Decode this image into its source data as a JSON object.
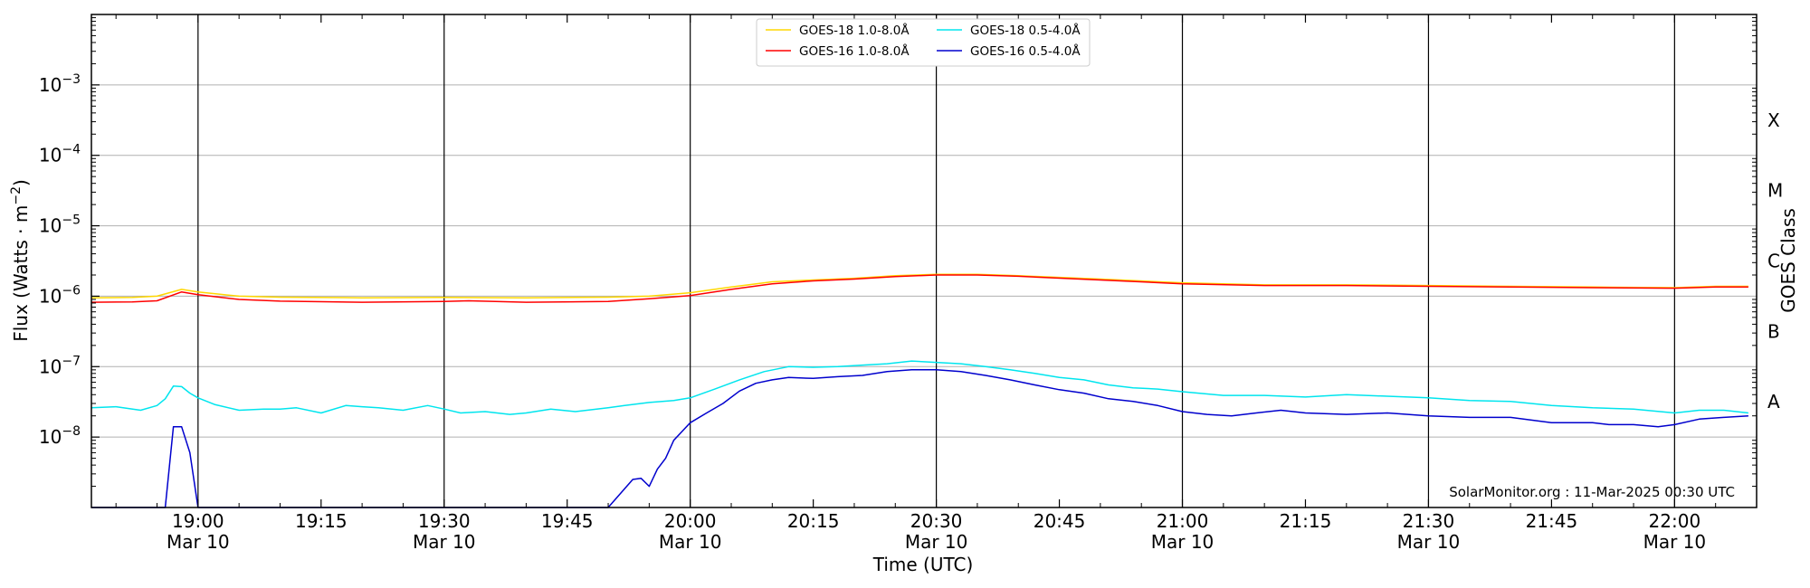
{
  "chart_data": {
    "type": "line",
    "title": "",
    "xlabel": "Time (UTC)",
    "ylabel": "Flux (Watts · m",
    "ylabel_sup": "−2",
    "ylabel_close": ")",
    "y2label": "GOES Class",
    "yscale": "log",
    "xlim": [
      "2025-03-10 18:47",
      "2025-03-10 22:10"
    ],
    "ylim": [
      1e-09,
      0.01
    ],
    "grid": "horizontal at decades, vertical at half hours",
    "legend_position": "top-center",
    "credit": "SolarMonitor.org : 11-Mar-2025 00:30 UTC",
    "x_ticks": [
      {
        "time": "19:00",
        "label": "19:00",
        "date": "Mar 10"
      },
      {
        "time": "19:15",
        "label": "19:15",
        "date": ""
      },
      {
        "time": "19:30",
        "label": "19:30",
        "date": "Mar 10"
      },
      {
        "time": "19:45",
        "label": "19:45",
        "date": ""
      },
      {
        "time": "20:00",
        "label": "20:00",
        "date": "Mar 10"
      },
      {
        "time": "20:15",
        "label": "20:15",
        "date": ""
      },
      {
        "time": "20:30",
        "label": "20:30",
        "date": "Mar 10"
      },
      {
        "time": "20:45",
        "label": "20:45",
        "date": ""
      },
      {
        "time": "21:00",
        "label": "21:00",
        "date": "Mar 10"
      },
      {
        "time": "21:15",
        "label": "21:15",
        "date": ""
      },
      {
        "time": "21:30",
        "label": "21:30",
        "date": "Mar 10"
      },
      {
        "time": "21:45",
        "label": "21:45",
        "date": ""
      },
      {
        "time": "22:00",
        "label": "22:00",
        "date": "Mar 10"
      }
    ],
    "y_ticks": [
      {
        "value": 1e-08,
        "base": "10",
        "exp": "−8"
      },
      {
        "value": 1e-07,
        "base": "10",
        "exp": "−7"
      },
      {
        "value": 1e-06,
        "base": "10",
        "exp": "−6"
      },
      {
        "value": 1e-05,
        "base": "10",
        "exp": "−5"
      },
      {
        "value": 0.0001,
        "base": "10",
        "exp": "−4"
      },
      {
        "value": 0.001,
        "base": "10",
        "exp": "−3"
      }
    ],
    "goes_classes": [
      {
        "label": "A",
        "value": 3.16e-08
      },
      {
        "label": "B",
        "value": 3.16e-07
      },
      {
        "label": "C",
        "value": 3.16e-06
      },
      {
        "label": "M",
        "value": 3.16e-05
      },
      {
        "label": "X",
        "value": 0.000316
      }
    ],
    "series": [
      {
        "name": "GOES-18 1.0-8.0Å",
        "color": "#ffd700",
        "x": [
          "18:47",
          "18:52",
          "18:55",
          "18:58",
          "19:00",
          "19:05",
          "19:10",
          "19:20",
          "19:30",
          "19:40",
          "19:50",
          "19:55",
          "20:00",
          "20:05",
          "20:10",
          "20:15",
          "20:20",
          "20:25",
          "20:30",
          "20:35",
          "20:40",
          "20:50",
          "21:00",
          "21:10",
          "21:20",
          "21:30",
          "21:40",
          "21:50",
          "22:00",
          "22:05",
          "22:09"
        ],
        "y": [
          9.5e-07,
          9.6e-07,
          1e-06,
          1.25e-06,
          1.15e-06,
          1e-06,
          9.7e-07,
          9.5e-07,
          9.6e-07,
          9.5e-07,
          9.7e-07,
          1e-06,
          1.12e-06,
          1.35e-06,
          1.6e-06,
          1.7e-06,
          1.8e-06,
          1.95e-06,
          2.05e-06,
          2.05e-06,
          1.95e-06,
          1.75e-06,
          1.55e-06,
          1.45e-06,
          1.45e-06,
          1.42e-06,
          1.38e-06,
          1.35e-06,
          1.32e-06,
          1.38e-06,
          1.38e-06
        ]
      },
      {
        "name": "GOES-16 1.0-8.0Å",
        "color": "#ff0000",
        "x": [
          "18:47",
          "18:52",
          "18:55",
          "18:58",
          "19:00",
          "19:05",
          "19:10",
          "19:20",
          "19:30",
          "19:33",
          "19:40",
          "19:50",
          "19:55",
          "20:00",
          "20:05",
          "20:10",
          "20:15",
          "20:20",
          "20:25",
          "20:30",
          "20:35",
          "20:40",
          "20:50",
          "21:00",
          "21:10",
          "21:20",
          "21:30",
          "21:40",
          "21:50",
          "22:00",
          "22:05",
          "22:09"
        ],
        "y": [
          8.2e-07,
          8.3e-07,
          8.6e-07,
          1.15e-06,
          1.05e-06,
          9e-07,
          8.5e-07,
          8.2e-07,
          8.4e-07,
          8.6e-07,
          8.2e-07,
          8.4e-07,
          9.2e-07,
          1.02e-06,
          1.25e-06,
          1.5e-06,
          1.65e-06,
          1.75e-06,
          1.9e-06,
          2e-06,
          2e-06,
          1.92e-06,
          1.7e-06,
          1.5e-06,
          1.42e-06,
          1.42e-06,
          1.38e-06,
          1.35e-06,
          1.32e-06,
          1.3e-06,
          1.35e-06,
          1.35e-06
        ]
      },
      {
        "name": "GOES-18 0.5-4.0Å",
        "color": "#00e5ee",
        "x": [
          "18:47",
          "18:50",
          "18:53",
          "18:55",
          "18:56",
          "18:57",
          "18:58",
          "18:59",
          "19:00",
          "19:02",
          "19:05",
          "19:08",
          "19:10",
          "19:12",
          "19:15",
          "19:18",
          "19:20",
          "19:22",
          "19:25",
          "19:28",
          "19:30",
          "19:32",
          "19:35",
          "19:38",
          "19:40",
          "19:43",
          "19:46",
          "19:50",
          "19:52",
          "19:55",
          "19:58",
          "20:00",
          "20:03",
          "20:06",
          "20:09",
          "20:12",
          "20:15",
          "20:18",
          "20:21",
          "20:24",
          "20:27",
          "20:30",
          "20:33",
          "20:36",
          "20:39",
          "20:42",
          "20:45",
          "20:48",
          "20:51",
          "20:54",
          "20:57",
          "21:00",
          "21:05",
          "21:10",
          "21:15",
          "21:20",
          "21:25",
          "21:30",
          "21:35",
          "21:40",
          "21:45",
          "21:50",
          "21:55",
          "22:00",
          "22:03",
          "22:06",
          "22:09"
        ],
        "y": [
          2.6e-08,
          2.7e-08,
          2.4e-08,
          2.8e-08,
          3.5e-08,
          5.3e-08,
          5.2e-08,
          4.2e-08,
          3.6e-08,
          2.9e-08,
          2.4e-08,
          2.5e-08,
          2.5e-08,
          2.6e-08,
          2.2e-08,
          2.8e-08,
          2.7e-08,
          2.6e-08,
          2.4e-08,
          2.8e-08,
          2.5e-08,
          2.2e-08,
          2.3e-08,
          2.1e-08,
          2.2e-08,
          2.5e-08,
          2.3e-08,
          2.6e-08,
          2.8e-08,
          3.1e-08,
          3.3e-08,
          3.6e-08,
          4.8e-08,
          6.5e-08,
          8.5e-08,
          1e-07,
          9.8e-08,
          1e-07,
          1.05e-07,
          1.1e-07,
          1.2e-07,
          1.15e-07,
          1.1e-07,
          1e-07,
          9e-08,
          8e-08,
          7e-08,
          6.5e-08,
          5.5e-08,
          5e-08,
          4.8e-08,
          4.4e-08,
          3.9e-08,
          3.9e-08,
          3.7e-08,
          4e-08,
          3.8e-08,
          3.6e-08,
          3.3e-08,
          3.2e-08,
          2.8e-08,
          2.6e-08,
          2.5e-08,
          2.2e-08,
          2.4e-08,
          2.4e-08,
          2.2e-08
        ]
      },
      {
        "name": "GOES-16 0.5-4.0Å",
        "color": "#0000cd",
        "x": [
          "18:47",
          "18:56",
          "18:57",
          "18:58",
          "18:59",
          "19:00",
          "19:10",
          "19:30",
          "19:50",
          "19:53",
          "19:54",
          "19:55",
          "19:56",
          "19:57",
          "19:58",
          "19:59",
          "20:00",
          "20:02",
          "20:04",
          "20:06",
          "20:08",
          "20:10",
          "20:12",
          "20:15",
          "20:18",
          "20:21",
          "20:24",
          "20:27",
          "20:30",
          "20:33",
          "20:36",
          "20:39",
          "20:42",
          "20:45",
          "20:48",
          "20:51",
          "20:54",
          "20:57",
          "21:00",
          "21:03",
          "21:06",
          "21:09",
          "21:12",
          "21:15",
          "21:20",
          "21:25",
          "21:30",
          "21:35",
          "21:40",
          "21:45",
          "21:50",
          "21:52",
          "21:55",
          "21:58",
          "22:00",
          "22:03",
          "22:06",
          "22:09"
        ],
        "y": [
          1e-09,
          1e-09,
          1.4e-08,
          1.4e-08,
          6e-09,
          1e-09,
          1e-09,
          1e-09,
          1e-09,
          2.5e-09,
          2.6e-09,
          2e-09,
          3.5e-09,
          5e-09,
          9e-09,
          1.2e-08,
          1.6e-08,
          2.2e-08,
          3e-08,
          4.5e-08,
          5.8e-08,
          6.5e-08,
          7e-08,
          6.8e-08,
          7.2e-08,
          7.5e-08,
          8.5e-08,
          9e-08,
          9e-08,
          8.5e-08,
          7.5e-08,
          6.5e-08,
          5.5e-08,
          4.7e-08,
          4.2e-08,
          3.5e-08,
          3.2e-08,
          2.8e-08,
          2.3e-08,
          2.1e-08,
          2e-08,
          2.2e-08,
          2.4e-08,
          2.2e-08,
          2.1e-08,
          2.2e-08,
          2e-08,
          1.9e-08,
          1.9e-08,
          1.6e-08,
          1.6e-08,
          1.5e-08,
          1.5e-08,
          1.4e-08,
          1.5e-08,
          1.8e-08,
          1.9e-08,
          2e-08
        ]
      }
    ]
  }
}
